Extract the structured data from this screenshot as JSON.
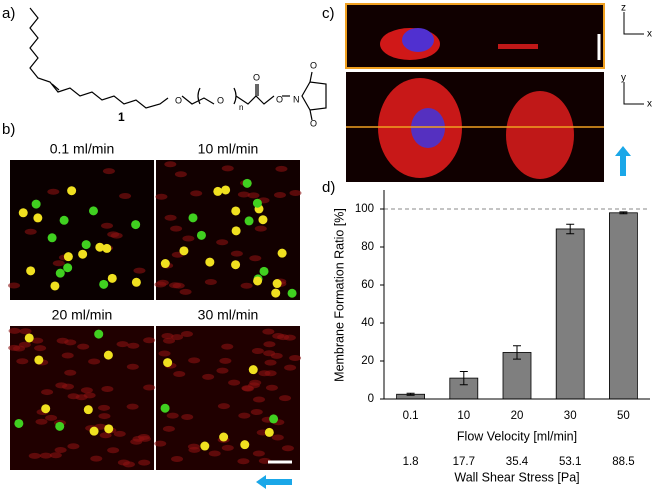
{
  "panels": {
    "a": {
      "label": "a)",
      "compound_number": "1",
      "atoms": [
        "O",
        "O",
        "n",
        "O",
        "O",
        "N",
        "O",
        "O"
      ]
    },
    "b": {
      "label": "b)",
      "images": [
        "0.1 ml/min",
        "10 ml/min",
        "20 ml/min",
        "30 ml/min"
      ]
    },
    "c": {
      "label": "c)",
      "axes_top": [
        "z",
        "x"
      ],
      "axes_bottom": [
        "y",
        "x"
      ]
    }
  },
  "chart_data": {
    "type": "bar",
    "panel_label": "d)",
    "x_label": "Flow Velocity [ml/min]",
    "y_label": "Membrane Formation Ratio [%]",
    "secondary_x_label": "Wall Shear Stress [Pa]",
    "categories": [
      "0.1",
      "10",
      "20",
      "30",
      "50"
    ],
    "secondary_categories": [
      "1.8",
      "17.7",
      "35.4",
      "53.1",
      "88.5"
    ],
    "values": [
      2.5,
      11,
      24.5,
      89.5,
      98
    ],
    "errors": [
      0.5,
      3.5,
      3.5,
      2.5,
      0.5
    ],
    "color": "#7f7f7f",
    "reference_line": 100,
    "ylim": [
      0,
      110
    ],
    "yticks": [
      0,
      20,
      40,
      60,
      80,
      100
    ]
  }
}
